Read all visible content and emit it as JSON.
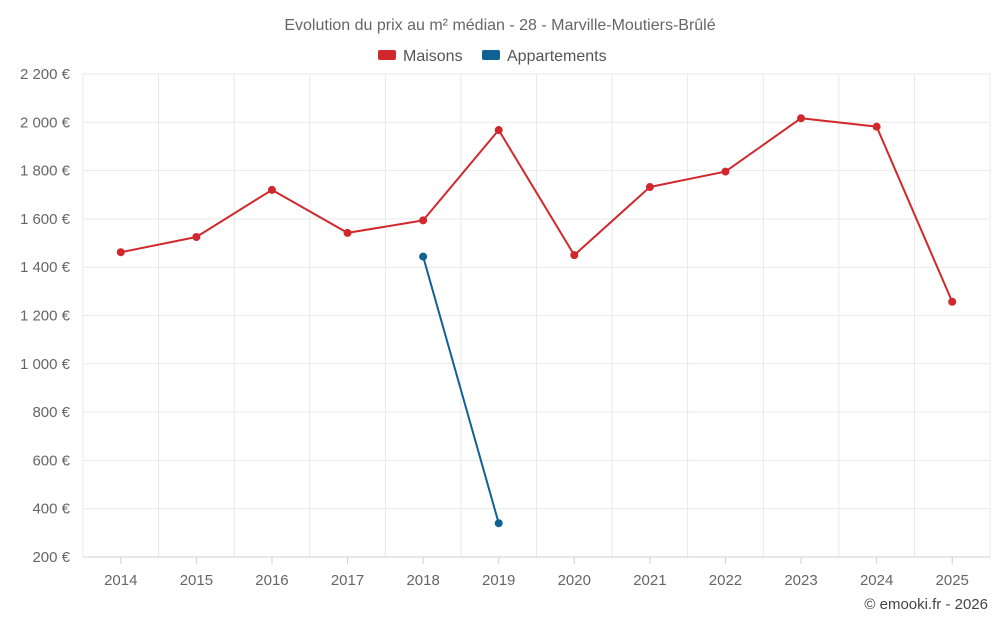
{
  "chart_data": {
    "type": "line",
    "title": "Evolution du prix au m² médian - 28 - Marville-Moutiers-Brûlé",
    "categories": [
      "2014",
      "2015",
      "2016",
      "2017",
      "2018",
      "2019",
      "2020",
      "2021",
      "2022",
      "2023",
      "2024",
      "2025"
    ],
    "series": [
      {
        "name": "Maisons",
        "color": "#d0282c",
        "values": [
          1462,
          1525,
          1720,
          1542,
          1594,
          1968,
          1450,
          1732,
          1796,
          2017,
          1982,
          1257
        ]
      },
      {
        "name": "Appartements",
        "color": "#0f6293",
        "values": [
          null,
          null,
          null,
          null,
          1444,
          340,
          null,
          null,
          null,
          null,
          null,
          null
        ]
      }
    ],
    "ylim": [
      200,
      2200
    ],
    "yticks": [
      200,
      400,
      600,
      800,
      1000,
      1200,
      1400,
      1600,
      1800,
      2000,
      2200
    ],
    "ytick_labels": [
      "200 €",
      "400 €",
      "600 €",
      "800 €",
      "1 000 €",
      "1 200 €",
      "1 400 €",
      "1 600 €",
      "1 800 €",
      "2 000 €",
      "2 200 €"
    ],
    "xlabel": "",
    "ylabel": "",
    "legend_position": "top-center",
    "grid": true
  },
  "credit": "© emooki.fr - 2026"
}
